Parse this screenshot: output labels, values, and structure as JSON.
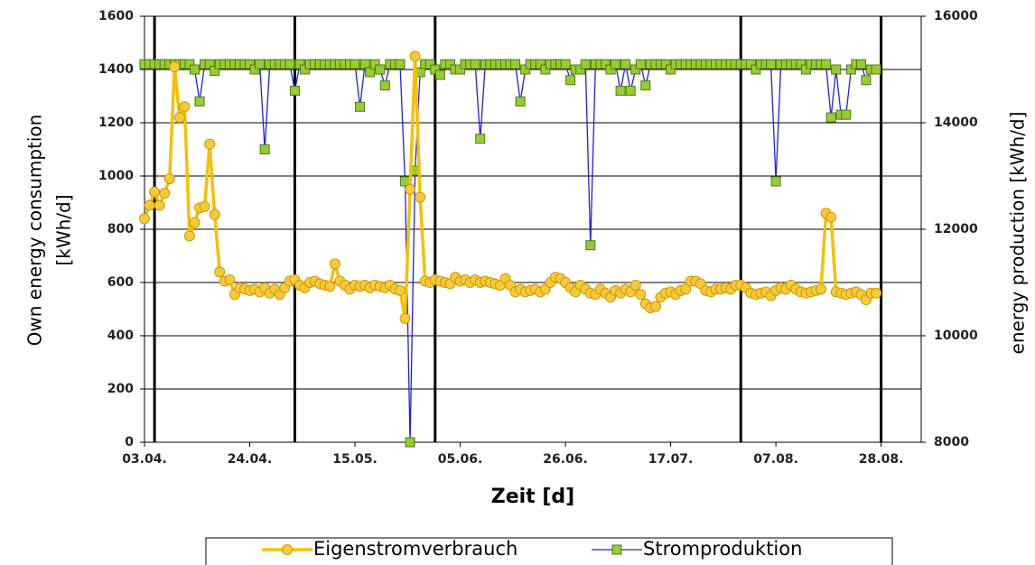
{
  "chart_data": {
    "type": "line",
    "xlabel": "Zeit [d]",
    "ylabel": [
      "Own energy consumption",
      "[kWh/d]"
    ],
    "y2label": "energy production [kWh/d]",
    "x": [
      "03.04.",
      "04.04.",
      "05.04.",
      "06.04.",
      "07.04.",
      "08.04.",
      "09.04.",
      "10.04.",
      "11.04.",
      "12.04.",
      "13.04.",
      "14.04.",
      "15.04.",
      "16.04.",
      "17.04.",
      "18.04.",
      "19.04.",
      "20.04.",
      "21.04.",
      "22.04.",
      "23.04.",
      "24.04.",
      "25.04.",
      "26.04.",
      "27.04.",
      "28.04.",
      "29.04.",
      "30.04.",
      "01.05.",
      "02.05.",
      "03.05.",
      "04.05.",
      "05.05.",
      "06.05.",
      "07.05.",
      "08.05.",
      "09.05.",
      "10.05.",
      "11.05.",
      "12.05.",
      "13.05.",
      "14.05.",
      "15.05.",
      "16.05.",
      "17.05.",
      "18.05.",
      "19.05.",
      "20.05.",
      "21.05.",
      "22.05.",
      "23.05.",
      "24.05.",
      "25.05.",
      "26.05.",
      "27.05.",
      "28.05.",
      "29.05.",
      "30.05.",
      "31.05.",
      "01.06.",
      "02.06.",
      "03.06.",
      "04.06.",
      "05.06.",
      "06.06.",
      "07.06.",
      "08.06.",
      "09.06.",
      "10.06.",
      "11.06.",
      "12.06.",
      "13.06.",
      "14.06.",
      "15.06.",
      "16.06.",
      "17.06.",
      "18.06.",
      "19.06.",
      "20.06.",
      "21.06.",
      "22.06.",
      "23.06.",
      "24.06.",
      "25.06.",
      "26.06.",
      "27.06.",
      "28.06.",
      "29.06.",
      "30.06.",
      "01.07.",
      "02.07.",
      "03.07.",
      "04.07.",
      "05.07.",
      "06.07.",
      "07.07.",
      "08.07.",
      "09.07.",
      "10.07.",
      "11.07.",
      "12.07.",
      "13.07.",
      "14.07.",
      "15.07.",
      "16.07.",
      "17.07.",
      "18.07.",
      "19.07.",
      "20.07.",
      "21.07.",
      "22.07.",
      "23.07.",
      "24.07.",
      "25.07.",
      "26.07.",
      "27.07.",
      "28.07.",
      "29.07.",
      "30.07.",
      "31.07.",
      "01.08.",
      "02.08.",
      "03.08.",
      "04.08.",
      "05.08.",
      "06.08.",
      "07.08.",
      "08.08.",
      "09.08.",
      "10.08.",
      "11.08.",
      "12.08.",
      "13.08.",
      "14.08.",
      "15.08.",
      "16.08.",
      "17.08.",
      "18.08.",
      "19.08.",
      "20.08.",
      "21.08.",
      "22.08.",
      "23.08.",
      "24.08.",
      "25.08.",
      "26.08.",
      "27.08."
    ],
    "series": [
      {
        "name": "Eigenstromverbrauch",
        "color": "#f5c000",
        "marker_color": "#f8c93a",
        "marker": "circle",
        "axis": "y",
        "values": [
          840,
          890,
          940,
          890,
          935,
          990,
          1410,
          1220,
          1260,
          775,
          825,
          880,
          885,
          1120,
          855,
          640,
          605,
          610,
          555,
          580,
          575,
          570,
          575,
          565,
          580,
          560,
          575,
          555,
          580,
          605,
          610,
          590,
          580,
          600,
          605,
          595,
          590,
          585,
          670,
          605,
          590,
          575,
          590,
          585,
          590,
          580,
          590,
          585,
          580,
          590,
          575,
          570,
          465,
          950,
          1450,
          920,
          605,
          600,
          610,
          605,
          600,
          595,
          620,
          605,
          610,
          600,
          610,
          600,
          605,
          600,
          595,
          590,
          615,
          590,
          565,
          575,
          565,
          570,
          575,
          565,
          575,
          600,
          620,
          615,
          600,
          580,
          565,
          590,
          575,
          560,
          555,
          575,
          560,
          545,
          570,
          560,
          575,
          565,
          590,
          555,
          520,
          505,
          510,
          545,
          560,
          565,
          555,
          570,
          575,
          605,
          605,
          595,
          570,
          565,
          575,
          575,
          580,
          575,
          590,
          590,
          580,
          560,
          555,
          560,
          565,
          550,
          570,
          580,
          575,
          590,
          575,
          565,
          560,
          565,
          570,
          575,
          860,
          845,
          565,
          560,
          555,
          560,
          565,
          555,
          535,
          560,
          560
        ]
      },
      {
        "name": "Stromproduktion",
        "color": "#1f1fe6",
        "marker_color": "#99cc33",
        "marker": "square",
        "axis": "y2",
        "values": [
          15100,
          15100,
          15100,
          15100,
          15100,
          15100,
          15100,
          15100,
          15100,
          15100,
          15000,
          14400,
          15100,
          15100,
          14975,
          15100,
          15100,
          15100,
          15100,
          15100,
          15100,
          15100,
          15000,
          15100,
          13500,
          15100,
          15100,
          15100,
          15100,
          15100,
          14600,
          15100,
          15000,
          15100,
          15100,
          15100,
          15100,
          15100,
          15100,
          15100,
          15100,
          15100,
          15100,
          14300,
          15100,
          14950,
          15100,
          15000,
          14700,
          15100,
          15100,
          15100,
          12900,
          8000,
          13100,
          14950,
          15100,
          15100,
          15000,
          14900,
          15100,
          15100,
          15000,
          15000,
          15100,
          15100,
          15100,
          13700,
          15100,
          15100,
          15100,
          15100,
          15100,
          15100,
          15100,
          14400,
          15000,
          15100,
          15100,
          15100,
          15000,
          15100,
          15100,
          15100,
          15100,
          14800,
          15000,
          15000,
          15100,
          11700,
          15100,
          15100,
          15100,
          15000,
          15100,
          14600,
          15100,
          14600,
          15000,
          15100,
          14700,
          15100,
          15100,
          15100,
          15100,
          15000,
          15100,
          15100,
          15100,
          15100,
          15100,
          15100,
          15100,
          15100,
          15100,
          15100,
          15100,
          15100,
          15100,
          15100,
          15100,
          15100,
          15000,
          15100,
          15100,
          15100,
          12900,
          15100,
          15100,
          15100,
          15100,
          15100,
          15000,
          15100,
          15100,
          15100,
          15100,
          14100,
          15000,
          14150,
          14150,
          15000,
          15100,
          15100,
          14800,
          15000,
          15000
        ]
      }
    ],
    "xlim": [
      "03.04.",
      "05.09."
    ],
    "xticks": [
      "03.04.",
      "24.04.",
      "15.05.",
      "05.06.",
      "26.06.",
      "17.07.",
      "07.08.",
      "28.08."
    ],
    "ylim": [
      0,
      1600
    ],
    "yticks": [
      0,
      200,
      400,
      600,
      800,
      1000,
      1200,
      1400,
      1600
    ],
    "y2lim": [
      8000,
      16000
    ],
    "y2ticks": [
      8000,
      10000,
      12000,
      14000,
      16000
    ],
    "vlines": [
      "05.04.",
      "03.05.",
      "31.05.",
      "31.07.",
      "28.08."
    ],
    "grid": true,
    "legend": "bottom"
  }
}
